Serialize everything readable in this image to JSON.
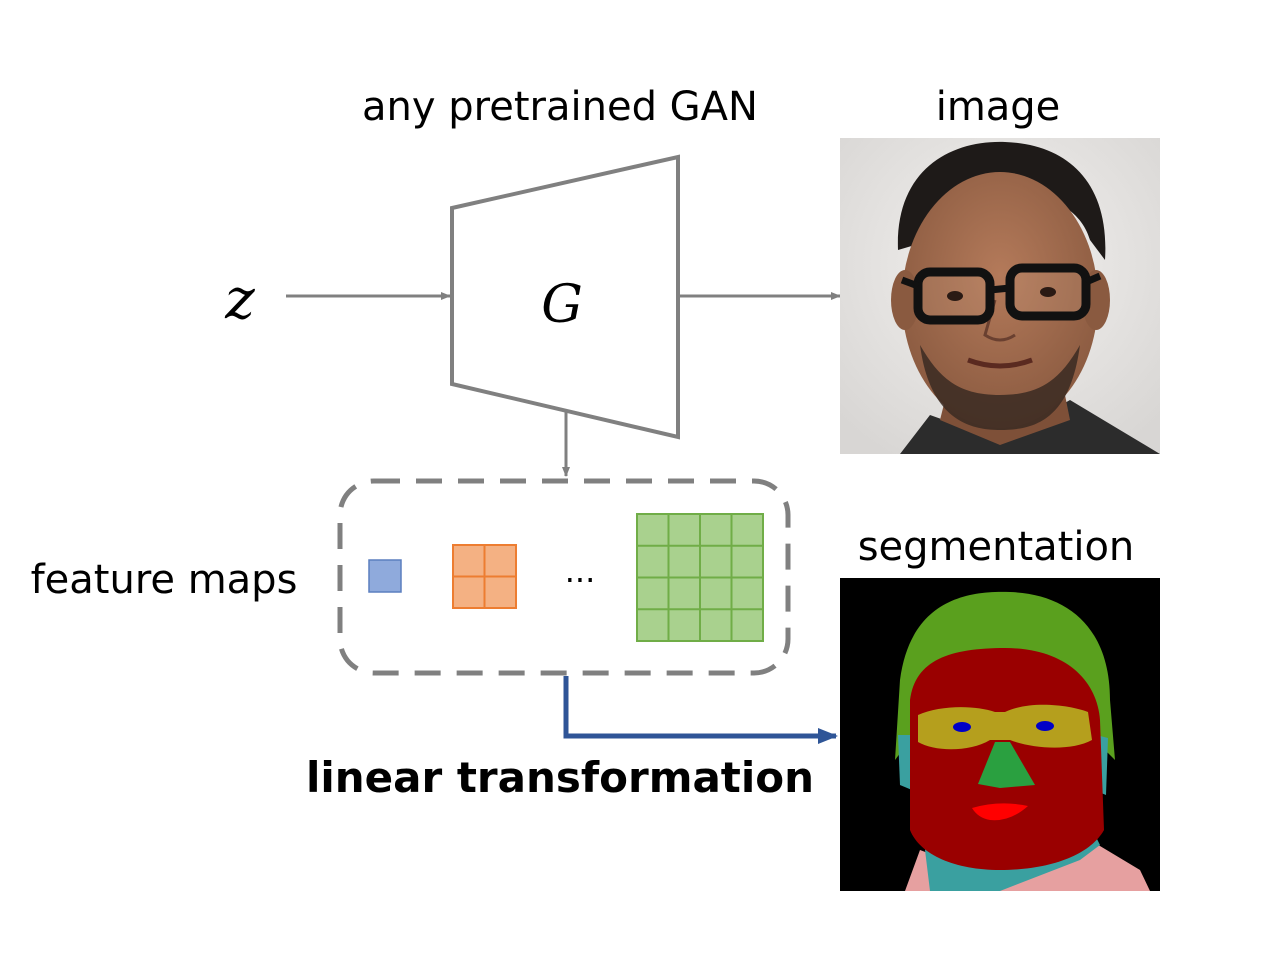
{
  "labels": {
    "gan": "any pretrained GAN",
    "latent": "z",
    "generator": "G",
    "image": "image",
    "segmentation": "segmentation",
    "feature_maps": "feature maps",
    "ellipsis": "...",
    "linear": "linear transformation"
  },
  "colors": {
    "arrow_gray": "#808080",
    "arrow_blue": "#2f5597",
    "feature_small": "#8faadc",
    "feature_medium": "#f4b183",
    "feature_medium_line": "#ed7d31",
    "feature_large": "#a9d18e",
    "feature_large_line": "#70ad47",
    "seg_background": "#000000",
    "seg_hair": "#5aa01e",
    "seg_skin": "#9a0000",
    "seg_glasses": "#b8b020",
    "seg_neck": "#3aa0a0",
    "seg_cloth": "#e6a0a0",
    "seg_lips": "#ff0000",
    "seg_eyes": "#0000c8"
  },
  "icons": {
    "face_photo": "generated-face-photo",
    "segmentation_mask": "face-segmentation-mask"
  }
}
